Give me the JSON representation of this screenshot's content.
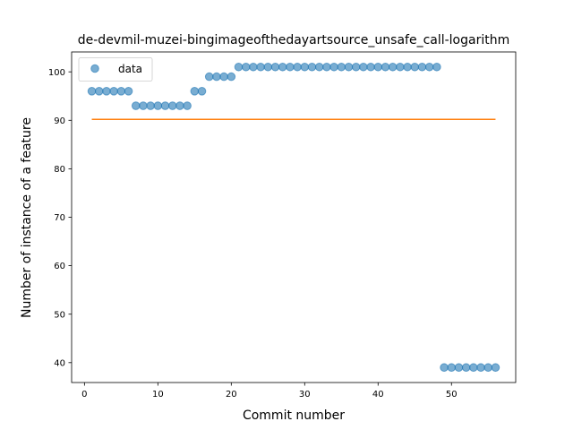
{
  "chart_data": {
    "type": "scatter",
    "title": "de-devmil-muzei-bingimageofthedayartsource_unsafe_call-logarithm",
    "xlabel": "Commit number",
    "ylabel": "Number of instance of a feature",
    "xlim": [
      -1.75,
      58.75
    ],
    "ylim": [
      35.9,
      104.1
    ],
    "xticks": [
      0,
      10,
      20,
      30,
      40,
      50
    ],
    "yticks": [
      40,
      50,
      60,
      70,
      80,
      90,
      100
    ],
    "grid": false,
    "legend": {
      "placement": "upper-left"
    },
    "series": [
      {
        "name": "data",
        "kind": "scatter",
        "color": "#1f77b4",
        "x": [
          1,
          2,
          3,
          4,
          5,
          6,
          7,
          8,
          9,
          10,
          11,
          12,
          13,
          14,
          15,
          16,
          17,
          18,
          19,
          20,
          21,
          22,
          23,
          24,
          25,
          26,
          27,
          28,
          29,
          30,
          31,
          32,
          33,
          34,
          35,
          36,
          37,
          38,
          39,
          40,
          41,
          42,
          43,
          44,
          45,
          46,
          47,
          48,
          49,
          50,
          51,
          52,
          53,
          54,
          55,
          56
        ],
        "y": [
          96,
          96,
          96,
          96,
          96,
          96,
          93,
          93,
          93,
          93,
          93,
          93,
          93,
          93,
          96,
          96,
          99,
          99,
          99,
          99,
          101,
          101,
          101,
          101,
          101,
          101,
          101,
          101,
          101,
          101,
          101,
          101,
          101,
          101,
          101,
          101,
          101,
          101,
          101,
          101,
          101,
          101,
          101,
          101,
          101,
          101,
          101,
          101,
          39,
          39,
          39,
          39,
          39,
          39,
          39,
          39
        ]
      },
      {
        "name": "",
        "kind": "line",
        "color": "#ff7f0e",
        "x": [
          1,
          56
        ],
        "y": [
          90.2,
          90.2
        ]
      }
    ]
  }
}
